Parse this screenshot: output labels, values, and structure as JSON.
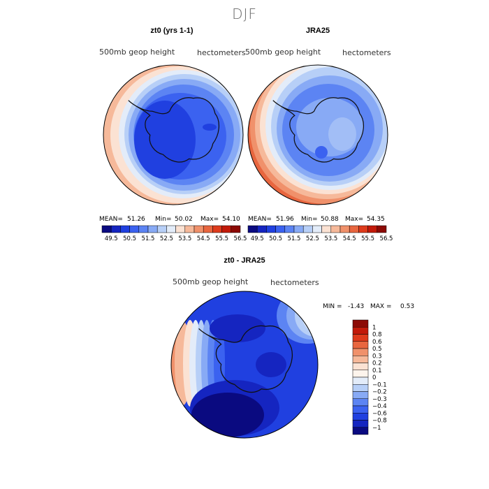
{
  "main_title": "DJF",
  "panels": [
    {
      "title": "zt0 (yrs 1-1)",
      "field_label": "500mb geop height",
      "units": "hectometers",
      "stats": {
        "mean_label": "MEAN=",
        "mean": "51.26",
        "min_label": "Min=",
        "min": "50.02",
        "max_label": "Max=",
        "max": "54.10"
      }
    },
    {
      "title": "JRA25",
      "field_label": "500mb geop height",
      "units": "hectometers",
      "stats": {
        "mean_label": "MEAN=",
        "mean": "51.96",
        "min_label": "Min=",
        "min": "50.88",
        "max_label": "Max=",
        "max": "54.35"
      }
    }
  ],
  "diff_panel": {
    "title": "zt0 - JRA25",
    "field_label": "500mb geop height",
    "units": "hectometers",
    "min_label": "MIN =",
    "min": "-1.43",
    "max_label": "MAX =",
    "max": "0.53"
  },
  "chart_data": [
    {
      "type": "heatmap",
      "title": "zt0 (yrs 1-1)",
      "projection": "south-polar-stereographic",
      "variable": "500mb geop height",
      "units": "hectometers",
      "mean": 51.26,
      "min": 50.02,
      "max": 54.1,
      "colorbar": {
        "orientation": "horizontal",
        "ticks": [
          "49.5",
          "50.5",
          "51.5",
          "52.5",
          "53.5",
          "54.5",
          "55.5",
          "56.5"
        ],
        "colors": [
          "#0a0a80",
          "#1525c0",
          "#2040e0",
          "#3b62f0",
          "#5c84f3",
          "#88aaf5",
          "#b7cff7",
          "#e3ecf9",
          "#fbe2d3",
          "#f6b99a",
          "#f0916b",
          "#e8663f",
          "#de3b1c",
          "#c21a0a",
          "#8c0a05"
        ]
      }
    },
    {
      "type": "heatmap",
      "title": "JRA25",
      "projection": "south-polar-stereographic",
      "variable": "500mb geop height",
      "units": "hectometers",
      "mean": 51.96,
      "min": 50.88,
      "max": 54.35,
      "colorbar": {
        "orientation": "horizontal",
        "ticks": [
          "49.5",
          "50.5",
          "51.5",
          "52.5",
          "53.5",
          "54.5",
          "55.5",
          "56.5"
        ],
        "colors": [
          "#0a0a80",
          "#1525c0",
          "#2040e0",
          "#3b62f0",
          "#5c84f3",
          "#88aaf5",
          "#b7cff7",
          "#e3ecf9",
          "#fbe2d3",
          "#f6b99a",
          "#f0916b",
          "#e8663f",
          "#de3b1c",
          "#c21a0a",
          "#8c0a05"
        ]
      }
    },
    {
      "type": "heatmap",
      "title": "zt0 - JRA25",
      "projection": "south-polar-stereographic",
      "variable": "500mb geop height",
      "units": "hectometers",
      "min": -1.43,
      "max": 0.53,
      "colorbar": {
        "orientation": "vertical",
        "ticks": [
          "1",
          "0.8",
          "0.6",
          "0.5",
          "0.3",
          "0.2",
          "0.1",
          "0",
          "−0.1",
          "−0.2",
          "−0.3",
          "−0.4",
          "−0.6",
          "−0.8",
          "−1"
        ],
        "colors": [
          "#8c0a05",
          "#c21a0a",
          "#de3b1c",
          "#e8663f",
          "#f0916b",
          "#f6b99a",
          "#fbe2d3",
          "#fdf4ec",
          "#e3ecf9",
          "#b7cff7",
          "#88aaf5",
          "#5c84f3",
          "#3b62f0",
          "#2040e0",
          "#1525c0",
          "#0a0a80"
        ]
      }
    }
  ]
}
